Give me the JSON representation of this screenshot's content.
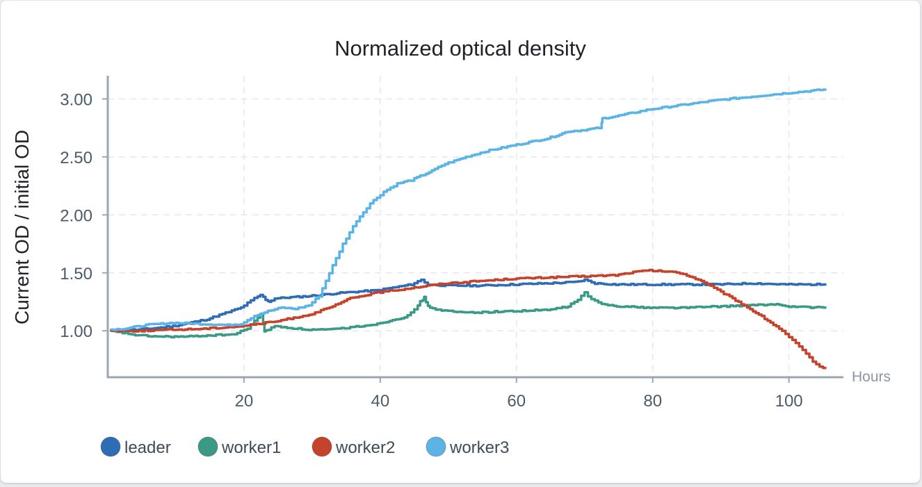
{
  "chart_data": {
    "type": "line",
    "title": "Normalized optical density",
    "xlabel": "Hours",
    "ylabel": "Current OD / initial OD",
    "xlim": [
      0,
      108
    ],
    "ylim": [
      0.6,
      3.2
    ],
    "x_ticks": [
      20,
      40,
      60,
      80,
      100
    ],
    "y_ticks": [
      1.0,
      1.5,
      2.0,
      2.5,
      3.0
    ],
    "y_tick_labels": [
      "1.00",
      "1.50",
      "2.00",
      "2.50",
      "3.00"
    ],
    "grid": true,
    "legend": "bottom-left",
    "series": [
      {
        "name": "leader",
        "color": "#2e6db5",
        "points": [
          [
            0.5,
            1.0
          ],
          [
            5,
            1.01
          ],
          [
            10,
            1.04
          ],
          [
            15,
            1.1
          ],
          [
            20,
            1.2
          ],
          [
            22,
            1.28
          ],
          [
            22.8,
            1.31
          ],
          [
            23.5,
            1.27
          ],
          [
            24,
            1.25
          ],
          [
            25,
            1.28
          ],
          [
            30,
            1.3
          ],
          [
            35,
            1.33
          ],
          [
            40,
            1.35
          ],
          [
            45,
            1.4
          ],
          [
            46.5,
            1.44
          ],
          [
            47.5,
            1.4
          ],
          [
            50,
            1.39
          ],
          [
            55,
            1.39
          ],
          [
            60,
            1.4
          ],
          [
            65,
            1.41
          ],
          [
            69,
            1.42
          ],
          [
            70.5,
            1.44
          ],
          [
            72,
            1.41
          ],
          [
            75,
            1.4
          ],
          [
            80,
            1.4
          ],
          [
            85,
            1.4
          ],
          [
            90,
            1.4
          ],
          [
            95,
            1.41
          ],
          [
            100,
            1.4
          ],
          [
            105.5,
            1.4
          ]
        ]
      },
      {
        "name": "worker1",
        "color": "#3a9a86",
        "points": [
          [
            0.5,
            1.0
          ],
          [
            3,
            0.98
          ],
          [
            5,
            0.96
          ],
          [
            8,
            0.95
          ],
          [
            12,
            0.95
          ],
          [
            15,
            0.96
          ],
          [
            19,
            0.97
          ],
          [
            21,
            1.02
          ],
          [
            22,
            1.09
          ],
          [
            22.8,
            1.14
          ],
          [
            23.2,
            1.0
          ],
          [
            24,
            1.01
          ],
          [
            25,
            1.04
          ],
          [
            28,
            1.02
          ],
          [
            30,
            1.01
          ],
          [
            33,
            1.01
          ],
          [
            36,
            1.03
          ],
          [
            40,
            1.06
          ],
          [
            44,
            1.12
          ],
          [
            45.5,
            1.18
          ],
          [
            46.2,
            1.25
          ],
          [
            46.7,
            1.29
          ],
          [
            47.3,
            1.21
          ],
          [
            49,
            1.18
          ],
          [
            52,
            1.16
          ],
          [
            55,
            1.16
          ],
          [
            60,
            1.17
          ],
          [
            65,
            1.18
          ],
          [
            68,
            1.21
          ],
          [
            69.5,
            1.27
          ],
          [
            70.5,
            1.33
          ],
          [
            71.5,
            1.27
          ],
          [
            73,
            1.23
          ],
          [
            76,
            1.21
          ],
          [
            80,
            1.2
          ],
          [
            85,
            1.2
          ],
          [
            90,
            1.21
          ],
          [
            95,
            1.22
          ],
          [
            99,
            1.23
          ],
          [
            100,
            1.21
          ],
          [
            105.5,
            1.2
          ]
        ]
      },
      {
        "name": "worker2",
        "color": "#c5432a",
        "points": [
          [
            0.5,
            1.0
          ],
          [
            5,
            1.0
          ],
          [
            10,
            1.01
          ],
          [
            15,
            1.02
          ],
          [
            20,
            1.04
          ],
          [
            25,
            1.08
          ],
          [
            30,
            1.14
          ],
          [
            33,
            1.2
          ],
          [
            36,
            1.28
          ],
          [
            40,
            1.33
          ],
          [
            45,
            1.37
          ],
          [
            50,
            1.41
          ],
          [
            55,
            1.43
          ],
          [
            60,
            1.45
          ],
          [
            65,
            1.46
          ],
          [
            70,
            1.47
          ],
          [
            75,
            1.48
          ],
          [
            78,
            1.51
          ],
          [
            80,
            1.52
          ],
          [
            83,
            1.51
          ],
          [
            85,
            1.49
          ],
          [
            88,
            1.42
          ],
          [
            90,
            1.35
          ],
          [
            93,
            1.25
          ],
          [
            96,
            1.14
          ],
          [
            99,
            1.02
          ],
          [
            101,
            0.92
          ],
          [
            103,
            0.8
          ],
          [
            104.5,
            0.71
          ],
          [
            105.5,
            0.68
          ]
        ]
      },
      {
        "name": "worker3",
        "color": "#5cb3e6",
        "points": [
          [
            0.5,
            1.01
          ],
          [
            3,
            1.02
          ],
          [
            6,
            1.05
          ],
          [
            10,
            1.07
          ],
          [
            14,
            1.06
          ],
          [
            18,
            1.05
          ],
          [
            20,
            1.06
          ],
          [
            22,
            1.13
          ],
          [
            24,
            1.17
          ],
          [
            26,
            1.2
          ],
          [
            28,
            1.19
          ],
          [
            30,
            1.22
          ],
          [
            31.5,
            1.3
          ],
          [
            33,
            1.5
          ],
          [
            35,
            1.75
          ],
          [
            37,
            1.95
          ],
          [
            39,
            2.1
          ],
          [
            41,
            2.2
          ],
          [
            43,
            2.27
          ],
          [
            45,
            2.3
          ],
          [
            48,
            2.38
          ],
          [
            50,
            2.44
          ],
          [
            53,
            2.5
          ],
          [
            56,
            2.55
          ],
          [
            60,
            2.6
          ],
          [
            65,
            2.66
          ],
          [
            68,
            2.72
          ],
          [
            70,
            2.73
          ],
          [
            72.5,
            2.75
          ],
          [
            72.7,
            2.83
          ],
          [
            75,
            2.85
          ],
          [
            80,
            2.91
          ],
          [
            85,
            2.95
          ],
          [
            90,
            2.99
          ],
          [
            95,
            3.02
          ],
          [
            100,
            3.05
          ],
          [
            105.5,
            3.08
          ]
        ]
      }
    ]
  }
}
